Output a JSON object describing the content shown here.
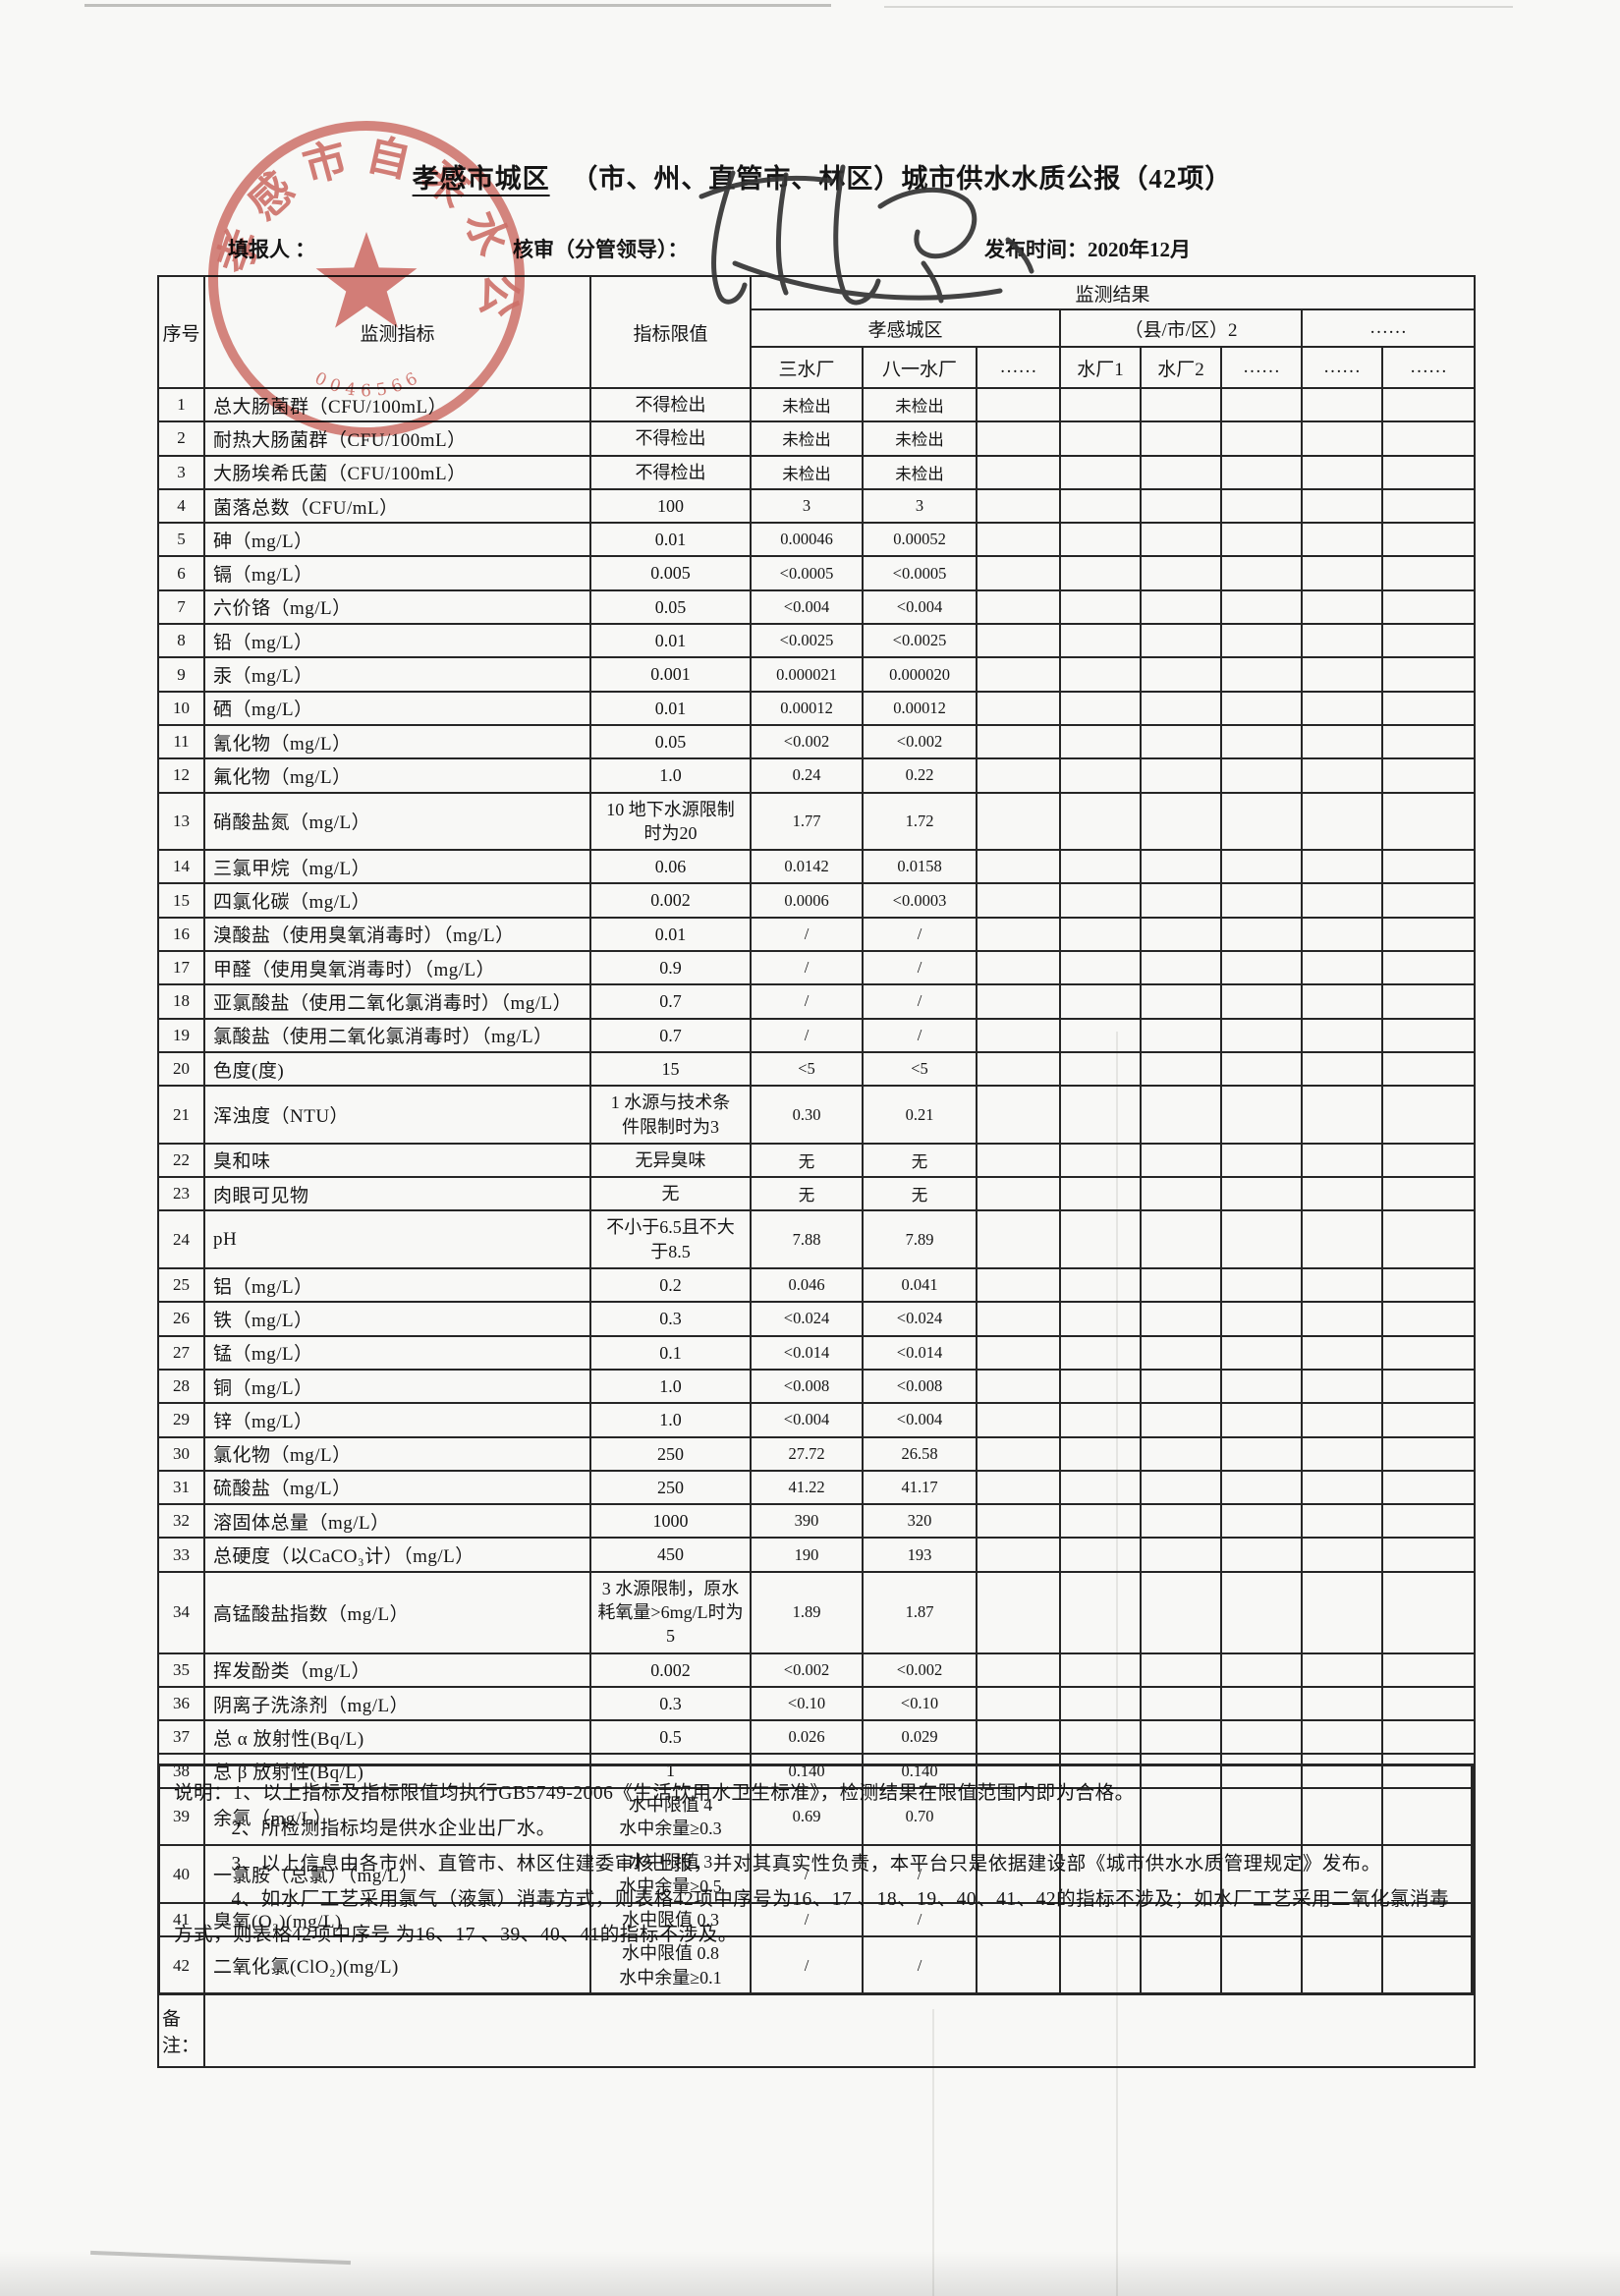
{
  "page": {
    "title_underlined": "孝感市城区",
    "title_rest": "（市、州、直管市、林区）城市供水水质公报（42项）",
    "filler_label": "填报人 ：",
    "reviewer_label": "核审（分管领导）：",
    "publish_label": "发布时间：2020年12月"
  },
  "stamp": {
    "company": "孝感市自来水公司",
    "serial": "0046566",
    "color": "#c64b42"
  },
  "table": {
    "header": {
      "seq": "序号",
      "indicator": "监测指标",
      "limit": "指标限值",
      "result": "监测结果",
      "group1": "孝感城区",
      "group2": "（县/市/区）2",
      "group3": "……",
      "plants": [
        "三水厂",
        "八一水厂",
        "……",
        "水厂1",
        "水厂2",
        "……",
        "……",
        "……"
      ]
    },
    "remark_label": "备注：",
    "rows": [
      {
        "no": "1",
        "indicator": "总大肠菌群（CFU/100mL）",
        "limit": "不得检出",
        "v1": "未检出",
        "v2": "未检出"
      },
      {
        "no": "2",
        "indicator": "耐热大肠菌群（CFU/100mL）",
        "limit": "不得检出",
        "v1": "未检出",
        "v2": "未检出"
      },
      {
        "no": "3",
        "indicator": "大肠埃希氏菌（CFU/100mL）",
        "limit": "不得检出",
        "v1": "未检出",
        "v2": "未检出"
      },
      {
        "no": "4",
        "indicator": "菌落总数（CFU/mL）",
        "limit": "100",
        "v1": "3",
        "v2": "3"
      },
      {
        "no": "5",
        "indicator": "砷（mg/L）",
        "limit": "0.01",
        "v1": "0.00046",
        "v2": "0.00052"
      },
      {
        "no": "6",
        "indicator": "镉（mg/L）",
        "limit": "0.005",
        "v1": "<0.0005",
        "v2": "<0.0005"
      },
      {
        "no": "7",
        "indicator": "六价铬（mg/L）",
        "limit": "0.05",
        "v1": "<0.004",
        "v2": "<0.004"
      },
      {
        "no": "8",
        "indicator": "铅（mg/L）",
        "limit": "0.01",
        "v1": "<0.0025",
        "v2": "<0.0025"
      },
      {
        "no": "9",
        "indicator": "汞（mg/L）",
        "limit": "0.001",
        "v1": "0.000021",
        "v2": "0.000020"
      },
      {
        "no": "10",
        "indicator": "硒（mg/L）",
        "limit": "0.01",
        "v1": "0.00012",
        "v2": "0.00012"
      },
      {
        "no": "11",
        "indicator": "氰化物（mg/L）",
        "limit": "0.05",
        "v1": "<0.002",
        "v2": "<0.002"
      },
      {
        "no": "12",
        "indicator": "氟化物（mg/L）",
        "limit": "1.0",
        "v1": "0.24",
        "v2": "0.22"
      },
      {
        "no": "13",
        "indicator": "硝酸盐氮（mg/L）",
        "limit": "10 地下水源限制\n时为20",
        "v1": "1.77",
        "v2": "1.72"
      },
      {
        "no": "14",
        "indicator": "三氯甲烷（mg/L）",
        "limit": "0.06",
        "v1": "0.0142",
        "v2": "0.0158"
      },
      {
        "no": "15",
        "indicator": "四氯化碳（mg/L）",
        "limit": "0.002",
        "v1": "0.0006",
        "v2": "<0.0003"
      },
      {
        "no": "16",
        "indicator": "溴酸盐（使用臭氧消毒时）（mg/L）",
        "limit": "0.01",
        "v1": "/",
        "v2": "/"
      },
      {
        "no": "17",
        "indicator": "甲醛（使用臭氧消毒时）（mg/L）",
        "limit": "0.9",
        "v1": "/",
        "v2": "/"
      },
      {
        "no": "18",
        "indicator": "亚氯酸盐（使用二氧化氯消毒时）（mg/L）",
        "limit": "0.7",
        "v1": "/",
        "v2": "/"
      },
      {
        "no": "19",
        "indicator": "氯酸盐（使用二氧化氯消毒时）（mg/L）",
        "limit": "0.7",
        "v1": "/",
        "v2": "/"
      },
      {
        "no": "20",
        "indicator": "色度(度)",
        "limit": "15",
        "v1": "<5",
        "v2": "<5"
      },
      {
        "no": "21",
        "indicator": "浑浊度（NTU）",
        "limit": "1  水源与技术条\n件限制时为3",
        "v1": "0.30",
        "v2": "0.21"
      },
      {
        "no": "22",
        "indicator": "臭和味",
        "limit": "无异臭味",
        "v1": "无",
        "v2": "无"
      },
      {
        "no": "23",
        "indicator": "肉眼可见物",
        "limit": "无",
        "v1": "无",
        "v2": "无"
      },
      {
        "no": "24",
        "indicator": "pH",
        "limit": "不小于6.5且不大\n于8.5",
        "v1": "7.88",
        "v2": "7.89"
      },
      {
        "no": "25",
        "indicator": "铝（mg/L）",
        "limit": "0.2",
        "v1": "0.046",
        "v2": "0.041"
      },
      {
        "no": "26",
        "indicator": "铁（mg/L）",
        "limit": "0.3",
        "v1": "<0.024",
        "v2": "<0.024"
      },
      {
        "no": "27",
        "indicator": "锰（mg/L）",
        "limit": "0.1",
        "v1": "<0.014",
        "v2": "<0.014"
      },
      {
        "no": "28",
        "indicator": "铜（mg/L）",
        "limit": "1.0",
        "v1": "<0.008",
        "v2": "<0.008"
      },
      {
        "no": "29",
        "indicator": "锌（mg/L）",
        "limit": "1.0",
        "v1": "<0.004",
        "v2": "<0.004"
      },
      {
        "no": "30",
        "indicator": "氯化物（mg/L）",
        "limit": "250",
        "v1": "27.72",
        "v2": "26.58"
      },
      {
        "no": "31",
        "indicator": "硫酸盐（mg/L）",
        "limit": "250",
        "v1": "41.22",
        "v2": "41.17"
      },
      {
        "no": "32",
        "indicator": "溶固体总量（mg/L）",
        "limit": "1000",
        "v1": "390",
        "v2": "320"
      },
      {
        "no": "33",
        "indicator": "总硬度（以CaCO₃计）（mg/L）",
        "limit": "450",
        "v1": "190",
        "v2": "193"
      },
      {
        "no": "34",
        "indicator": "高锰酸盐指数（mg/L）",
        "limit": "3  水源限制，原水\n耗氧量>6mg/L时为\n5",
        "v1": "1.89",
        "v2": "1.87"
      },
      {
        "no": "35",
        "indicator": "挥发酚类（mg/L）",
        "limit": "0.002",
        "v1": "<0.002",
        "v2": "<0.002"
      },
      {
        "no": "36",
        "indicator": "阴离子洗涤剂（mg/L）",
        "limit": "0.3",
        "v1": "<0.10",
        "v2": "<0.10"
      },
      {
        "no": "37",
        "indicator": "总 α 放射性(Bq/L)",
        "limit": "0.5",
        "v1": "0.026",
        "v2": "0.029"
      },
      {
        "no": "38",
        "indicator": "总 β 放射性(Bq/L)",
        "limit": "1",
        "v1": "0.140",
        "v2": "0.140"
      },
      {
        "no": "39",
        "indicator": "余氯（mg/L）",
        "limit": "水中限值 4\n水中余量≥0.3",
        "v1": "0.69",
        "v2": "0.70"
      },
      {
        "no": "40",
        "indicator": "一氯胺（总氯）（mg/L）",
        "limit": "水中限值 3\n水中余量≥0.5",
        "v1": "/",
        "v2": "/"
      },
      {
        "no": "41",
        "indicator": "臭氧(O₃)(mg/L)",
        "limit": "水中限值 0.3",
        "v1": "/",
        "v2": "/"
      },
      {
        "no": "42",
        "indicator": "二氧化氯(ClO₂)(mg/L)",
        "limit": "水中限值 0.8\n水中余量≥0.1",
        "v1": "/",
        "v2": "/"
      }
    ]
  },
  "notes": {
    "lines": [
      "说明：1、以上指标及指标限值均执行GB5749-2006《生活饮用水卫生标准》，检测结果在限值范围内即为合格。",
      "2、所检测指标均是供水企业出厂水。",
      "3、以上信息由各市州、直管市、林区住建委审核上报，并对其真实性负责，本平台只是依据建设部《城市供水水质管理规定》发布。",
      "4、如水厂工艺采用氯气（液氯）消毒方式，则表格42项中序号为16、17 、18、19、40、41、42的指标不涉及；如水厂工艺采用二氧化氯消毒方式，则表格42项中序号 为16、17 、39、40、41的指标不涉及。"
    ]
  }
}
